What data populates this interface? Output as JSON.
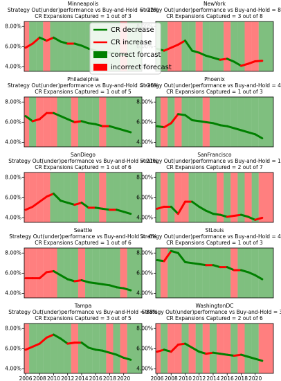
{
  "legend": {
    "corner": "top",
    "entries": [
      {
        "name": "CR decrease",
        "color": "#008000",
        "kind": "line"
      },
      {
        "name": "CR increase",
        "color": "#ff0000",
        "kind": "line"
      },
      {
        "name": "correct forcast",
        "color": "#008000",
        "kind": "patch"
      },
      {
        "name": "incorrect forecast",
        "color": "#ff0000",
        "kind": "patch"
      }
    ]
  },
  "chart_data": [
    {
      "type": "line",
      "title": "Minneapolis",
      "subtitle": [
        "Strategy Out(under)performance vs Buy-and-Hold = -22%",
        "CR Expansions Captured = 1 out of 3"
      ],
      "x": [
        2006,
        2007,
        2008,
        2009,
        2010,
        2011,
        2012,
        2013,
        2014,
        2015,
        2016,
        2017,
        2018,
        2019,
        2020,
        2021
      ],
      "values": [
        5.9,
        6.3,
        6.9,
        6.6,
        6.9,
        6.5,
        6.3,
        6.3,
        6.1,
        5.8,
        5.6,
        5.5,
        5.4,
        5.3,
        5.2,
        5.1
      ],
      "forecast_correct": [
        false,
        true,
        true,
        false,
        true,
        true,
        true,
        true,
        true,
        true,
        true,
        true,
        true,
        true,
        false,
        true
      ],
      "xlim": [
        2005.8,
        2022.6
      ],
      "ylim": [
        3.55,
        8.5
      ],
      "yticks": [
        {
          "value": 4,
          "label": "4.00%"
        },
        {
          "value": 6,
          "label": "6.00%"
        },
        {
          "value": 8,
          "label": "8.00%"
        }
      ]
    },
    {
      "type": "line",
      "title": "NewYork",
      "subtitle": [
        "Strategy Out(under)performance vs Buy-and-Hold = 87%",
        "CR Expansions Captured = 3 out of 8"
      ],
      "x": [
        2006,
        2007,
        2008,
        2009,
        2010,
        2011,
        2012,
        2013,
        2014,
        2015,
        2016,
        2017,
        2018,
        2019,
        2020,
        2021
      ],
      "values": [
        5.8,
        5.6,
        5.9,
        6.2,
        6.6,
        5.6,
        5.4,
        5.1,
        4.9,
        4.7,
        4.8,
        4.5,
        4.1,
        4.3,
        4.55,
        4.6
      ],
      "forecast_correct": [
        true,
        true,
        false,
        false,
        true,
        true,
        false,
        true,
        true,
        true,
        false,
        true,
        true,
        false,
        false,
        true
      ],
      "xlim": [
        2005.8,
        2022.6
      ],
      "ylim": [
        3.55,
        8.5
      ],
      "yticks": [
        {
          "value": 4,
          "label": "4.00%"
        },
        {
          "value": 6,
          "label": "6.00%"
        },
        {
          "value": 8,
          "label": "8.00%"
        }
      ]
    },
    {
      "type": "line",
      "title": "Philadelphia",
      "subtitle": [
        "Strategy Out(under)performance vs Buy-and-Hold = -26%",
        "CR Expansions Captured = 1 out of 5"
      ],
      "x": [
        2006,
        2007,
        2008,
        2009,
        2010,
        2011,
        2012,
        2013,
        2014,
        2015,
        2016,
        2017,
        2018,
        2019,
        2020,
        2021
      ],
      "values": [
        6.6,
        6.1,
        6.3,
        6.9,
        6.9,
        6.6,
        6.3,
        6.0,
        6.1,
        5.9,
        5.8,
        5.6,
        5.6,
        5.4,
        5.2,
        5.0
      ],
      "forecast_correct": [
        false,
        true,
        false,
        false,
        false,
        true,
        true,
        false,
        true,
        true,
        true,
        false,
        true,
        true,
        true,
        true
      ],
      "xlim": [
        2005.8,
        2022.6
      ],
      "ylim": [
        3.55,
        8.5
      ],
      "yticks": [
        {
          "value": 4,
          "label": "4.00%"
        },
        {
          "value": 6,
          "label": "6.00%"
        },
        {
          "value": 8,
          "label": "8.00%"
        }
      ]
    },
    {
      "type": "line",
      "title": "Phoenix",
      "subtitle": [
        "Strategy Out(under)performance vs Buy-and-Hold = 48%",
        "CR Expansions Captured = 1 out of 3"
      ],
      "x": [
        2006,
        2007,
        2008,
        2009,
        2010,
        2011,
        2012,
        2013,
        2014,
        2015,
        2016,
        2017,
        2018,
        2019,
        2020,
        2021
      ],
      "values": [
        5.6,
        5.5,
        5.9,
        6.8,
        6.7,
        6.2,
        6.1,
        6.0,
        5.9,
        5.7,
        5.6,
        5.4,
        5.2,
        5.0,
        4.8,
        4.4
      ],
      "forecast_correct": [
        true,
        false,
        true,
        false,
        true,
        true,
        true,
        false,
        true,
        true,
        true,
        true,
        true,
        true,
        true,
        true
      ],
      "xlim": [
        2005.8,
        2022.6
      ],
      "ylim": [
        3.55,
        8.5
      ],
      "yticks": [
        {
          "value": 4,
          "label": "4.00%"
        },
        {
          "value": 6,
          "label": "6.00%"
        },
        {
          "value": 8,
          "label": "8.00%"
        }
      ]
    },
    {
      "type": "line",
      "title": "SanDiego",
      "subtitle": [
        "Strategy Out(under)performance vs Buy-and-Hold = 21%",
        "CR Expansions Captured = 1 out of 6"
      ],
      "x": [
        2006,
        2007,
        2008,
        2009,
        2010,
        2011,
        2012,
        2013,
        2014,
        2015,
        2016,
        2017,
        2018,
        2019,
        2020,
        2021
      ],
      "values": [
        4.8,
        5.1,
        5.6,
        6.1,
        6.4,
        5.7,
        5.5,
        5.3,
        5.5,
        5.0,
        5.0,
        4.9,
        4.8,
        4.8,
        4.6,
        4.4
      ],
      "forecast_correct": [
        false,
        false,
        false,
        false,
        true,
        true,
        true,
        true,
        false,
        true,
        true,
        false,
        true,
        true,
        true,
        true
      ],
      "xlim": [
        2005.8,
        2022.6
      ],
      "ylim": [
        3.55,
        8.5
      ],
      "yticks": [
        {
          "value": 4,
          "label": "4.00%"
        },
        {
          "value": 6,
          "label": "6.00%"
        },
        {
          "value": 8,
          "label": "8.00%"
        }
      ]
    },
    {
      "type": "line",
      "title": "SanFrancisco",
      "subtitle": [
        "Strategy Out(under)performance vs Buy-and-Hold = 17%",
        "CR Expansions Captured = 2 out of 7"
      ],
      "x": [
        2006,
        2007,
        2008,
        2009,
        2010,
        2011,
        2012,
        2013,
        2014,
        2015,
        2016,
        2017,
        2018,
        2019,
        2020,
        2021
      ],
      "values": [
        4.9,
        5.1,
        5.1,
        4.4,
        5.6,
        5.6,
        5.1,
        4.7,
        4.4,
        4.3,
        4.1,
        4.2,
        4.3,
        4.1,
        3.8,
        4.0
      ],
      "forecast_correct": [
        true,
        false,
        true,
        false,
        false,
        true,
        true,
        true,
        true,
        false,
        true,
        false,
        true,
        false,
        true,
        false
      ],
      "xlim": [
        2005.8,
        2022.6
      ],
      "ylim": [
        3.55,
        8.5
      ],
      "yticks": [
        {
          "value": 4,
          "label": "4.00%"
        },
        {
          "value": 6,
          "label": "6.00%"
        },
        {
          "value": 8,
          "label": "8.00%"
        }
      ]
    },
    {
      "type": "line",
      "title": "Seattle",
      "subtitle": [
        "Strategy Out(under)performance vs Buy-and-Hold = -6%",
        "CR Expansions Captured = 1 out of 6"
      ],
      "x": [
        2006,
        2007,
        2008,
        2009,
        2010,
        2011,
        2012,
        2013,
        2014,
        2015,
        2016,
        2017,
        2018,
        2019,
        2020,
        2021
      ],
      "values": [
        5.5,
        5.5,
        5.5,
        6.1,
        6.2,
        5.8,
        5.4,
        5.2,
        5.3,
        5.1,
        5.0,
        4.9,
        4.8,
        4.6,
        4.5,
        4.3
      ],
      "forecast_correct": [
        false,
        false,
        false,
        false,
        false,
        true,
        true,
        true,
        false,
        true,
        true,
        true,
        true,
        true,
        false,
        true
      ],
      "xlim": [
        2005.8,
        2022.6
      ],
      "ylim": [
        3.55,
        8.5
      ],
      "yticks": [
        {
          "value": 4,
          "label": "4.00%"
        },
        {
          "value": 6,
          "label": "6.00%"
        },
        {
          "value": 8,
          "label": "8.00%"
        }
      ]
    },
    {
      "type": "line",
      "title": "StLouis",
      "subtitle": [
        "Strategy Out(under)performance vs Buy-and-Hold = 41%",
        "CR Expansions Captured = 1 out of 3"
      ],
      "x": [
        2006,
        2007,
        2008,
        2009,
        2010,
        2011,
        2012,
        2013,
        2014,
        2015,
        2016,
        2017,
        2018,
        2019,
        2020,
        2021
      ],
      "values": [
        7.3,
        7.2,
        8.2,
        8.0,
        7.1,
        7.0,
        6.9,
        6.8,
        6.8,
        6.6,
        6.6,
        6.3,
        6.3,
        6.1,
        5.8,
        5.4
      ],
      "forecast_correct": [
        true,
        false,
        true,
        true,
        true,
        true,
        true,
        true,
        true,
        true,
        true,
        false,
        true,
        true,
        true,
        true
      ],
      "xlim": [
        2005.8,
        2022.6
      ],
      "ylim": [
        3.55,
        8.5
      ],
      "yticks": [
        {
          "value": 4,
          "label": "4.00%"
        },
        {
          "value": 6,
          "label": "6.00%"
        },
        {
          "value": 8,
          "label": "8.00%"
        }
      ]
    },
    {
      "type": "line",
      "title": "Tampa",
      "subtitle": [
        "Strategy Out(under)performance vs Buy-and-Hold = 88%",
        "CR Expansions Captured = 3 out of 5"
      ],
      "x": [
        2006,
        2007,
        2008,
        2009,
        2010,
        2011,
        2012,
        2013,
        2014,
        2015,
        2016,
        2017,
        2018,
        2019,
        2020,
        2021
      ],
      "values": [
        5.9,
        6.2,
        6.5,
        7.1,
        7.4,
        7.0,
        6.5,
        6.6,
        6.6,
        6.1,
        5.9,
        5.8,
        5.6,
        5.4,
        5.1,
        4.9
      ],
      "forecast_correct": [
        false,
        true,
        true,
        true,
        true,
        true,
        true,
        false,
        true,
        true,
        true,
        true,
        false,
        true,
        false,
        true
      ],
      "xlim": [
        2005.8,
        2022.6
      ],
      "ylim": [
        3.55,
        8.5
      ],
      "yticks": [
        {
          "value": 4,
          "label": "4.00%"
        },
        {
          "value": 6,
          "label": "6.00%"
        },
        {
          "value": 8,
          "label": "8.00%"
        }
      ],
      "xticks": [
        2006,
        2008,
        2010,
        2012,
        2014,
        2016,
        2018,
        2020
      ]
    },
    {
      "type": "line",
      "title": "WashingtonDC",
      "subtitle": [
        "Strategy Out(under)performance vs Buy-and-Hold = 3%",
        "CR Expansions Captured = 2 out of 6"
      ],
      "x": [
        2006,
        2007,
        2008,
        2009,
        2010,
        2011,
        2012,
        2013,
        2014,
        2015,
        2016,
        2017,
        2018,
        2019,
        2020,
        2021
      ],
      "values": [
        5.7,
        5.9,
        5.7,
        6.4,
        6.5,
        6.1,
        5.7,
        5.5,
        5.6,
        5.5,
        5.4,
        5.3,
        5.4,
        5.2,
        5.0,
        4.8
      ],
      "forecast_correct": [
        false,
        true,
        false,
        false,
        true,
        false,
        true,
        false,
        true,
        false,
        false,
        true,
        false,
        true,
        true,
        false
      ],
      "xlim": [
        2005.8,
        2022.6
      ],
      "ylim": [
        3.55,
        8.5
      ],
      "yticks": [
        {
          "value": 4,
          "label": "4.00%"
        },
        {
          "value": 6,
          "label": "6.00%"
        },
        {
          "value": 8,
          "label": "8.00%"
        }
      ],
      "xticks": [
        2006,
        2008,
        2010,
        2012,
        2014,
        2016,
        2018,
        2020
      ]
    }
  ]
}
